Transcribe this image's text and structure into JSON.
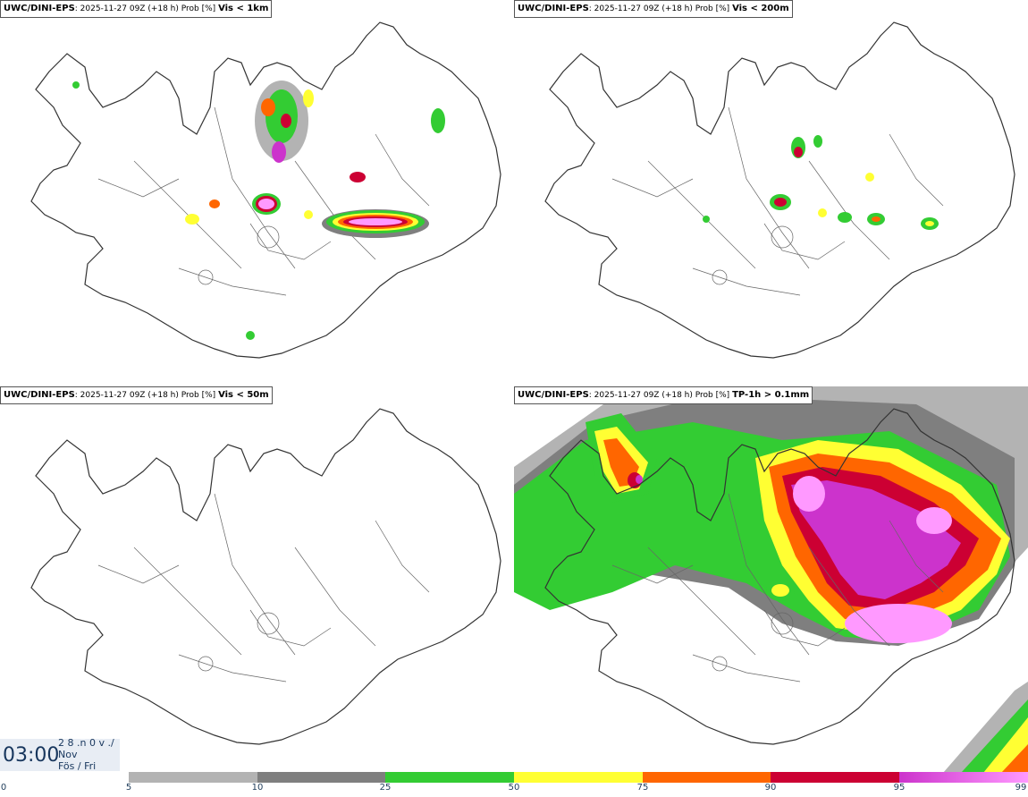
{
  "panels": [
    {
      "model": "UWC/DINI-EPS",
      "info": "2025-11-27 09Z (+18 h) Prob [%]",
      "variable": "Vis < 1km"
    },
    {
      "model": "UWC/DINI-EPS",
      "info": "2025-11-27 09Z (+18 h) Prob [%]",
      "variable": "Vis < 200m"
    },
    {
      "model": "UWC/DINI-EPS",
      "info": "2025-11-27 09Z (+18 h) Prob [%]",
      "variable": "Vis < 50m"
    },
    {
      "model": "UWC/DINI-EPS",
      "info": "2025-11-27 09Z (+18 h) Prob [%]",
      "variable": "TP-1h > 0.1mm"
    }
  ],
  "valid_time": {
    "time": "03:00",
    "date_line": "2 8 .n 0 v ./",
    "month": "Nov",
    "weekday": "Fös / Fri"
  },
  "legend": {
    "ticks": [
      "0",
      "5",
      "10",
      "25",
      "50",
      "75",
      "90",
      "95",
      "99"
    ],
    "colors": [
      "#ffffff",
      "#b3b3b3",
      "#7f7f7f",
      "#33cc33",
      "#ffff33",
      "#ff6600",
      "#cc0033",
      "#cc33cc",
      "#ff99ff"
    ]
  },
  "map_colors": {
    "land_outline": "#333333",
    "river": "#555555",
    "gray_light": "#b3b3b3",
    "gray_dark": "#7f7f7f",
    "green": "#33cc33",
    "yellow": "#ffff33",
    "orange": "#ff6600",
    "red": "#cc0033",
    "magenta": "#cc33cc",
    "pink": "#ff99ff"
  }
}
